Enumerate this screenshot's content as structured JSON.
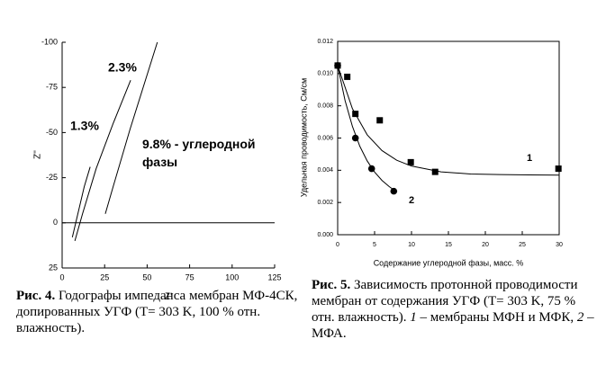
{
  "chart_data": [
    {
      "type": "line",
      "xlabel": "Z'",
      "ylabel": "Z''",
      "xlim": [
        0,
        125
      ],
      "xticks": [
        0,
        25,
        50,
        75,
        100,
        125
      ],
      "ylim": [
        25,
        -100
      ],
      "yticks": [
        25,
        0,
        -25,
        -50,
        -75,
        -100
      ],
      "zero_line": true,
      "color": "#000000",
      "series": [
        {
          "name": "1.3%",
          "x": [
            6,
            9,
            13,
            16.5
          ],
          "values": [
            8,
            -4,
            -20,
            -31
          ]
        },
        {
          "name": "2.3%",
          "x": [
            7.5,
            12,
            20,
            30,
            40.3
          ],
          "values": [
            10,
            -5,
            -30,
            -55,
            -79
          ]
        },
        {
          "name": "9.8% - углеродной фазы",
          "x": [
            25.4,
            30,
            40,
            50,
            56
          ],
          "values": [
            -5,
            -20,
            -52,
            -82,
            -100
          ]
        }
      ]
    },
    {
      "type": "scatter",
      "xlabel": "Содержание углеродной фазы, масс. %",
      "ylabel": "Удельная проводимость, См/см",
      "xlim": [
        0,
        30
      ],
      "xticks": [
        0,
        5,
        10,
        15,
        20,
        25,
        30
      ],
      "ylim": [
        0,
        0.012
      ],
      "yticks": [
        {
          "value": 0,
          "label": "0.000"
        },
        {
          "value": 0.002,
          "label": "0.002"
        },
        {
          "value": 0.004,
          "label": "0.004"
        },
        {
          "value": 0.006,
          "label": "0.006"
        },
        {
          "value": 0.008,
          "label": "0.008"
        },
        {
          "value": 0.01,
          "label": "0.010"
        },
        {
          "value": 0.012,
          "label": "0.012"
        }
      ],
      "color": "#000000",
      "series": [
        {
          "name": "1",
          "marker": "square",
          "x": [
            0,
            1.3,
            2.4,
            5.7,
            9.9,
            13.2,
            29.9
          ],
          "values": [
            0.0105,
            0.0098,
            0.0075,
            0.0071,
            0.0045,
            0.0039,
            0.0041
          ],
          "fit_x": [
            0,
            2,
            4,
            6,
            8,
            10,
            14,
            18,
            22,
            26,
            30
          ],
          "fit_values": [
            0.0105,
            0.00782,
            0.0062,
            0.00522,
            0.00462,
            0.00426,
            0.0039,
            0.00377,
            0.00373,
            0.00371,
            0.0037
          ]
        },
        {
          "name": "2",
          "marker": "circle",
          "x": [
            0,
            2.4,
            4.6,
            7.6
          ],
          "values": [
            0.0105,
            0.006,
            0.0041,
            0.0027
          ],
          "fit_x": [
            0,
            1,
            2,
            3,
            4,
            5,
            6,
            7,
            7.5
          ],
          "fit_values": [
            0.0105,
            0.00833,
            0.00672,
            0.00549,
            0.00458,
            0.00389,
            0.00337,
            0.00298,
            0.00282
          ]
        }
      ]
    }
  ],
  "captions": [
    {
      "label": "Рис. 4.",
      "text": "Годографы импеданса мембран МФ-4СК, допированных УГФ (T= 303 K, 100 % отн. влажность)."
    },
    {
      "label": "Рис. 5.",
      "text": "Зависимость протонной проводимости мембран от содержания УГФ (T= 303 K, 75 % отн. влажность).",
      "items": [
        "1",
        "– мембраны МФН и МФК,",
        "2",
        "– МФА."
      ]
    }
  ]
}
